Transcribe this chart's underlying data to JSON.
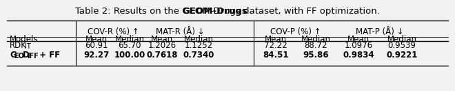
{
  "title_normal": "Table 2: Results on the ",
  "title_bold": "GEOM-Drugs",
  "title_suffix": " dataset, with FF optimization.",
  "group_headers": [
    "COV-R (%) ↑",
    "MAT-R (Å) ↓",
    "COV-P (%) ↑",
    "MAT-P (Å) ↓"
  ],
  "col_header": "Models",
  "sub_headers": [
    "Mean",
    "Median",
    "Mean",
    "Median",
    "Mean",
    "Median",
    "Mean",
    "Median"
  ],
  "row1_model_caps": "RDK",
  "row1_model_small": "IT",
  "row1_values": [
    "60.91",
    "65.70",
    "1.2026",
    "1.1252",
    "72.22",
    "88.72",
    "1.0976",
    "0.9539"
  ],
  "row2_model_caps": "G",
  "row2_model_small1": "EO",
  "row2_model_caps2": "D",
  "row2_model_small2": "IFF",
  "row2_model_rest": " + FF",
  "row2_values": [
    "92.27",
    "100.00",
    "0.7618",
    "0.7340",
    "84.51",
    "95.86",
    "0.9834",
    "0.9221"
  ],
  "bg_color": "#f2f2f2",
  "fs_title": 9.5,
  "fs_table": 8.5,
  "fs_small": 7.0
}
